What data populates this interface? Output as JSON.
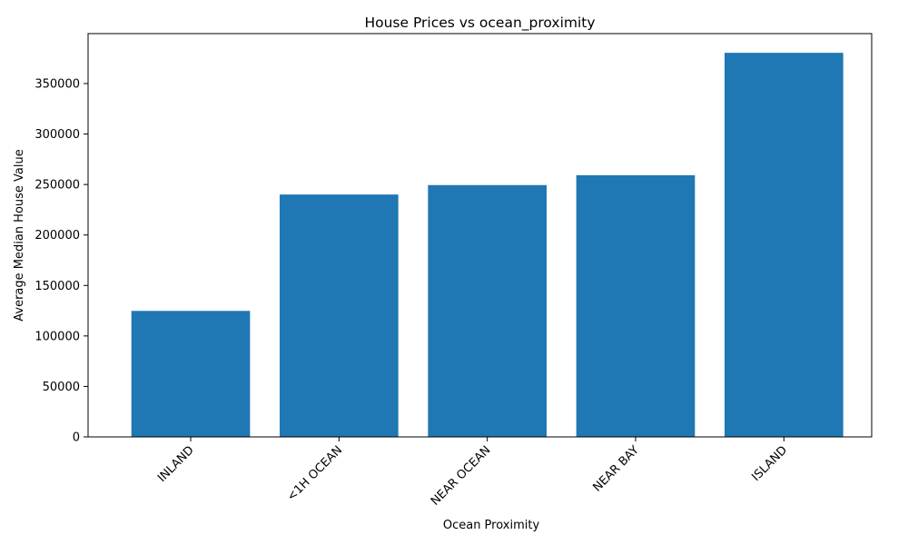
{
  "chart_data": {
    "type": "bar",
    "title": "House Prices vs ocean_proximity",
    "xlabel": "Ocean Proximity",
    "ylabel": "Average Median House Value",
    "categories": [
      "INLAND",
      "<1H OCEAN",
      "NEAR OCEAN",
      "NEAR BAY",
      "ISLAND"
    ],
    "values": [
      124805,
      240084,
      249434,
      259212,
      380440
    ],
    "ylim": [
      0,
      399462
    ],
    "yticks": [
      0,
      50000,
      100000,
      150000,
      200000,
      250000,
      300000,
      350000
    ],
    "bar_color": "#1f77b4",
    "grid": false,
    "legend": "none"
  }
}
